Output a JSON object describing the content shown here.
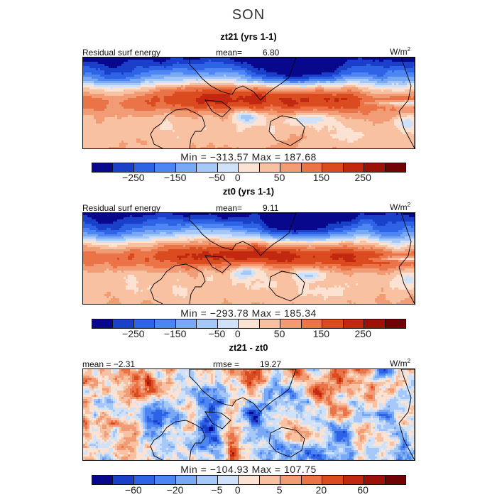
{
  "figure_title": "SON",
  "colors": {
    "palette": [
      "#08088c",
      "#1a3fc8",
      "#2f63e6",
      "#4d86f2",
      "#79a9f5",
      "#a6c8f8",
      "#d0e2fa",
      "#fbe2d2",
      "#f8c1a2",
      "#f29c75",
      "#ea7447",
      "#db4b20",
      "#c2280f",
      "#9c1207",
      "#700404"
    ],
    "coast": "#000000"
  },
  "panels": [
    {
      "title": "zt21 (yrs 1-1)",
      "left_label": "Residual surf energy",
      "mean_label": "mean=",
      "mean_value": "6.80",
      "unit": "W/m",
      "unit_sup": "2",
      "min_max": "Min = −313.57 Max = 187.68",
      "colorbar_ticks": [
        "−250",
        "−150",
        "−50",
        "0",
        "50",
        "150",
        "250"
      ],
      "diff": false
    },
    {
      "title": "zt0 (yrs 1-1)",
      "left_label": "Residual surf energy",
      "mean_label": "mean=",
      "mean_value": "9.11",
      "unit": "W/m",
      "unit_sup": "2",
      "min_max": "Min = −293.78 Max = 185.34",
      "colorbar_ticks": [
        "−250",
        "−150",
        "−50",
        "0",
        "50",
        "150",
        "250"
      ],
      "diff": false
    },
    {
      "title": "zt21 - zt0",
      "left_label": "mean = −2.31",
      "rmse_label": "rmse =",
      "rmse_value": "19.27",
      "unit": "W/m",
      "unit_sup": "2",
      "min_max": "Min = −104.93 Max = 107.75",
      "colorbar_ticks": [
        "−60",
        "−20",
        "−5",
        "0",
        "5",
        "20",
        "60"
      ],
      "diff": true
    }
  ]
}
